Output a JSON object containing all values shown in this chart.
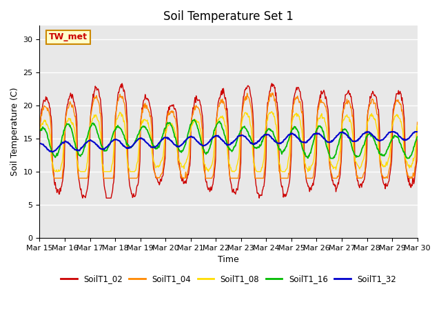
{
  "title": "Soil Temperature Set 1",
  "xlabel": "Time",
  "ylabel": "Soil Temperature (C)",
  "ylim": [
    0,
    32
  ],
  "yticks": [
    0,
    5,
    10,
    15,
    20,
    25,
    30
  ],
  "series_colors": {
    "SoilT1_02": "#cc0000",
    "SoilT1_04": "#ff8800",
    "SoilT1_08": "#ffdd00",
    "SoilT1_16": "#00bb00",
    "SoilT1_32": "#0000cc"
  },
  "annotation_text": "TW_met",
  "annotation_bbox": {
    "facecolor": "#ffffcc",
    "edgecolor": "#cc8800"
  },
  "xtick_labels": [
    "Mar 15",
    "Mar 16",
    "Mar 17",
    "Mar 18",
    "Mar 19",
    "Mar 20",
    "Mar 21",
    "Mar 22",
    "Mar 23",
    "Mar 24",
    "Mar 25",
    "Mar 26",
    "Mar 27",
    "Mar 28",
    "Mar 29",
    "Mar 30"
  ],
  "bg_color": "#e8e8e8",
  "title_fontsize": 12,
  "axis_fontsize": 9,
  "tick_fontsize": 8
}
